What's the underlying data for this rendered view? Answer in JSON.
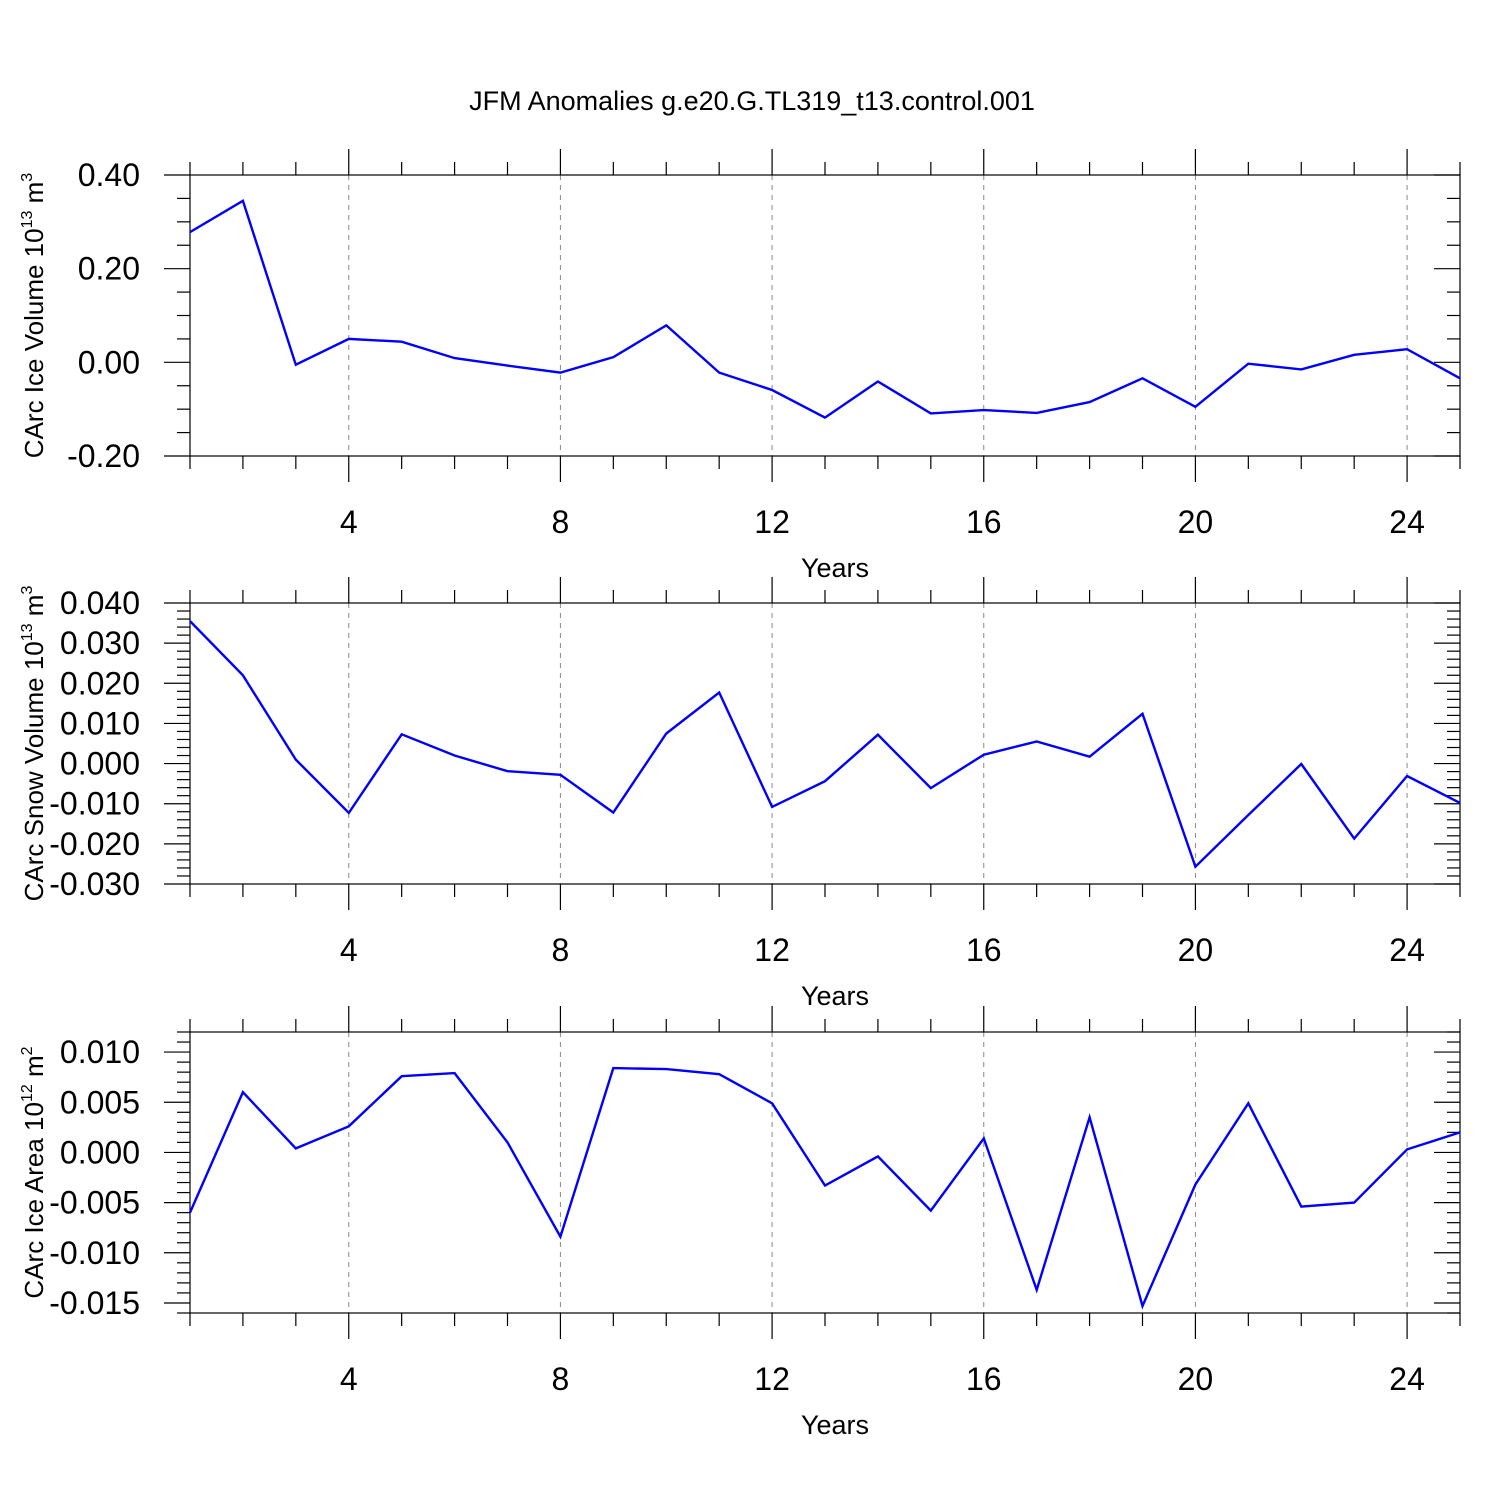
{
  "title": "JFM Anomalies g.e20.G.TL319_t13.control.001",
  "colors": {
    "line": "#0000ff",
    "grid": "#888888",
    "axis": "#000000"
  },
  "chart_data": [
    {
      "type": "line",
      "xlabel": "Years",
      "ylabel": "CArc Ice Volume 10",
      "ylabel_exponent": "13",
      "ylabel_unit": "m",
      "ylabel_unit_exponent": "3",
      "xlim": [
        1,
        25
      ],
      "ylim": [
        -0.2,
        0.4
      ],
      "xticks": [
        4,
        8,
        12,
        16,
        20,
        24
      ],
      "xtick_labels": [
        "4",
        "8",
        "12",
        "16",
        "20",
        "24"
      ],
      "yticks": [
        -0.2,
        0.0,
        0.2,
        0.4
      ],
      "ytick_labels": [
        "-0.20",
        "0.00",
        "0.20",
        "0.40"
      ],
      "x_minor_step": 1,
      "y_minor_step": 0.05,
      "grid": "vertical dashed at major x ticks",
      "x": [
        1,
        2,
        3,
        4,
        5,
        6,
        7,
        8,
        9,
        10,
        11,
        12,
        13,
        14,
        15,
        16,
        17,
        18,
        19,
        20,
        21,
        22,
        23,
        24,
        25
      ],
      "values": [
        0.278,
        0.345,
        -0.005,
        0.05,
        0.044,
        0.009,
        -0.007,
        -0.022,
        0.011,
        0.079,
        -0.022,
        -0.059,
        -0.118,
        -0.041,
        -0.109,
        -0.102,
        -0.108,
        -0.085,
        -0.034,
        -0.095,
        -0.003,
        -0.015,
        0.016,
        0.028,
        -0.034
      ]
    },
    {
      "type": "line",
      "xlabel": "Years",
      "ylabel": "CArc Snow Volume 10",
      "ylabel_exponent": "13",
      "ylabel_unit": "m",
      "ylabel_unit_exponent": "3",
      "xlim": [
        1,
        25
      ],
      "ylim": [
        -0.03,
        0.04
      ],
      "xticks": [
        4,
        8,
        12,
        16,
        20,
        24
      ],
      "xtick_labels": [
        "4",
        "8",
        "12",
        "16",
        "20",
        "24"
      ],
      "yticks": [
        -0.03,
        -0.02,
        -0.01,
        0.0,
        0.01,
        0.02,
        0.03,
        0.04
      ],
      "ytick_labels": [
        "-0.030",
        "-0.020",
        "-0.010",
        "0.000",
        "0.010",
        "0.020",
        "0.030",
        "0.040"
      ],
      "x_minor_step": 1,
      "y_minor_step": 0.002,
      "grid": "vertical dashed at major x ticks",
      "x": [
        1,
        2,
        3,
        4,
        5,
        6,
        7,
        8,
        9,
        10,
        11,
        12,
        13,
        14,
        15,
        16,
        17,
        18,
        19,
        20,
        21,
        22,
        23,
        24,
        25
      ],
      "values": [
        0.0355,
        0.022,
        0.001,
        -0.0123,
        0.0073,
        0.002,
        -0.0019,
        -0.0028,
        -0.0122,
        0.0075,
        0.0177,
        -0.0108,
        -0.0044,
        0.0072,
        -0.0061,
        0.0022,
        0.0055,
        0.0017,
        0.0124,
        -0.0257,
        -0.0128,
        -0.0001,
        -0.0187,
        -0.0031,
        -0.0098
      ]
    },
    {
      "type": "line",
      "xlabel": "Years",
      "ylabel": "CArc Ice Area 10",
      "ylabel_exponent": "12",
      "ylabel_unit": "m",
      "ylabel_unit_exponent": "2",
      "xlim": [
        1,
        25
      ],
      "ylim": [
        -0.016,
        0.012
      ],
      "xticks": [
        4,
        8,
        12,
        16,
        20,
        24
      ],
      "xtick_labels": [
        "4",
        "8",
        "12",
        "16",
        "20",
        "24"
      ],
      "yticks": [
        -0.015,
        -0.01,
        -0.005,
        0.0,
        0.005,
        0.01
      ],
      "ytick_labels": [
        "-0.015",
        "-0.010",
        "-0.005",
        "0.000",
        "0.005",
        "0.010"
      ],
      "x_minor_step": 1,
      "y_minor_step": 0.001,
      "grid": "vertical dashed at major x ticks",
      "x": [
        1,
        2,
        3,
        4,
        5,
        6,
        7,
        8,
        9,
        10,
        11,
        12,
        13,
        14,
        15,
        16,
        17,
        18,
        19,
        20,
        21,
        22,
        23,
        24,
        25
      ],
      "values": [
        -0.006,
        0.006,
        0.0004,
        0.0026,
        0.0076,
        0.0079,
        0.001,
        -0.0084,
        0.0084,
        0.0083,
        0.0078,
        0.0049,
        -0.0033,
        -0.0004,
        -0.0058,
        0.0014,
        -0.0137,
        0.0035,
        -0.0153,
        -0.0032,
        0.0049,
        -0.0054,
        -0.005,
        0.0003,
        0.002
      ]
    }
  ]
}
